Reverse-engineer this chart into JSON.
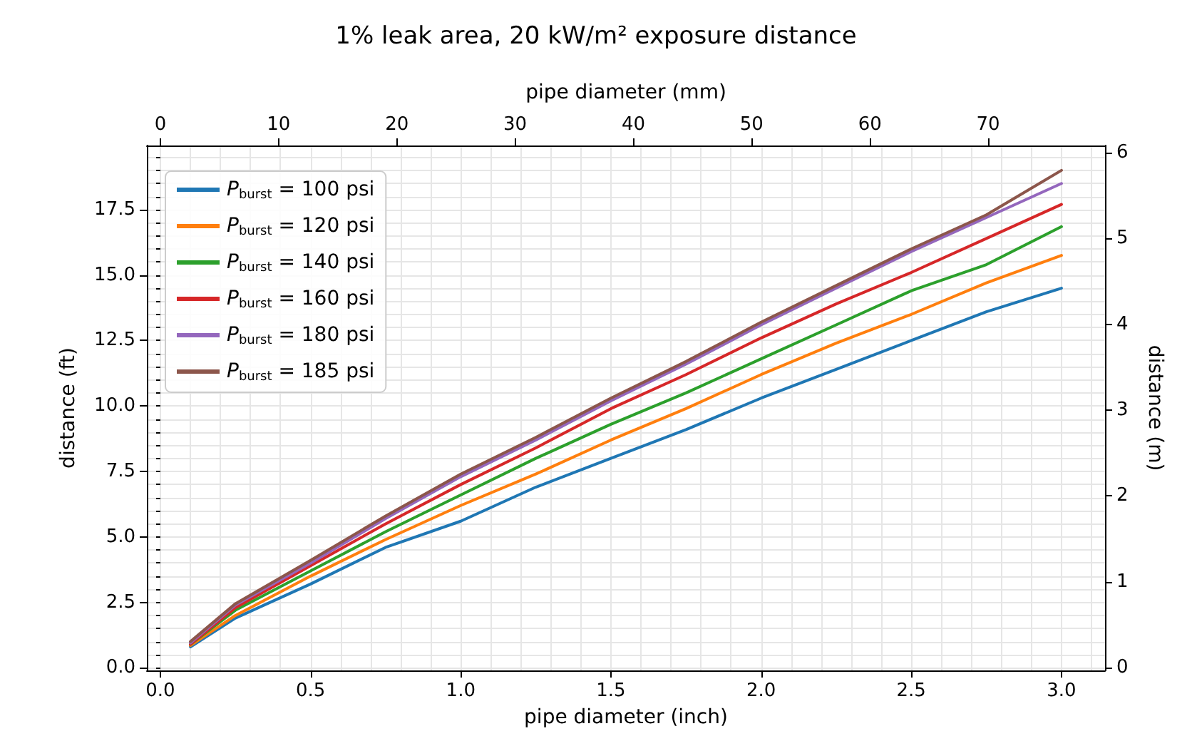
{
  "chart_data": {
    "type": "line",
    "title": "1% leak area, 20 kW/m² exposure distance",
    "xlabel": "pipe diameter (inch)",
    "x2label": "pipe diameter (mm)",
    "ylabel": "distance (ft)",
    "y2label": "distance (m)",
    "x": [
      0.1,
      0.25,
      0.5,
      0.75,
      1.0,
      1.25,
      1.5,
      1.75,
      2.0,
      2.25,
      2.5,
      2.75,
      3.0
    ],
    "series": [
      {
        "name": "P$_{burst}$ = 100 psi",
        "color": "#1f77b4",
        "values": [
          0.8,
          1.9,
          3.2,
          4.6,
          5.6,
          6.9,
          8.0,
          9.1,
          10.3,
          11.4,
          12.5,
          13.6,
          14.5
        ]
      },
      {
        "name": "P$_{burst}$ = 120 psi",
        "color": "#ff7f0e",
        "values": [
          0.85,
          2.0,
          3.5,
          4.9,
          6.2,
          7.4,
          8.7,
          9.9,
          11.2,
          12.4,
          13.5,
          14.7,
          15.75
        ]
      },
      {
        "name": "P$_{burst}$ = 140 psi",
        "color": "#2ca02c",
        "values": [
          0.9,
          2.2,
          3.7,
          5.2,
          6.6,
          8.0,
          9.3,
          10.5,
          11.8,
          13.1,
          14.4,
          15.4,
          16.85
        ]
      },
      {
        "name": "P$_{burst}$ = 160 psi",
        "color": "#d62728",
        "values": [
          0.9,
          2.3,
          3.9,
          5.5,
          7.0,
          8.4,
          9.9,
          11.2,
          12.6,
          13.9,
          15.1,
          16.4,
          17.7
        ]
      },
      {
        "name": "P$_{burst}$ = 180 psi",
        "color": "#9467bd",
        "values": [
          0.95,
          2.4,
          4.0,
          5.7,
          7.3,
          8.7,
          10.2,
          11.6,
          13.1,
          14.5,
          15.9,
          17.2,
          18.5
        ]
      },
      {
        "name": "P$_{burst}$ = 185 psi",
        "color": "#8c564b",
        "values": [
          1.0,
          2.45,
          4.1,
          5.8,
          7.4,
          8.8,
          10.3,
          11.7,
          13.2,
          14.6,
          16.0,
          17.3,
          19.0
        ]
      }
    ],
    "xlim": [
      -0.045,
      3.145
    ],
    "xticks": [
      {
        "value": 0,
        "label": "0.0"
      },
      {
        "value": 0.5,
        "label": "0.5"
      },
      {
        "value": 1,
        "label": "1.0"
      },
      {
        "value": 1.5,
        "label": "1.5"
      },
      {
        "value": 2,
        "label": "2.0"
      },
      {
        "value": 2.5,
        "label": "2.5"
      },
      {
        "value": 3,
        "label": "3.0"
      }
    ],
    "x2lim": [
      -1.14,
      79.88
    ],
    "x2ticks": [
      0,
      10,
      20,
      30,
      40,
      50,
      60,
      70
    ],
    "ylim": [
      -0.1,
      19.95
    ],
    "yticks": [
      {
        "value": 0,
        "label": "0.0"
      },
      2.5,
      {
        "value": 5,
        "label": "5.0"
      },
      7.5,
      {
        "value": 10,
        "label": "10.0"
      },
      12.5,
      {
        "value": 15,
        "label": "15.0"
      },
      17.5
    ],
    "y2lim": [
      -0.03,
      6.08
    ],
    "y2ticks": [
      0,
      1,
      2,
      3,
      4,
      5,
      6
    ],
    "grid": true,
    "legend": "top left",
    "marker": "none",
    "line_style": "solid"
  }
}
